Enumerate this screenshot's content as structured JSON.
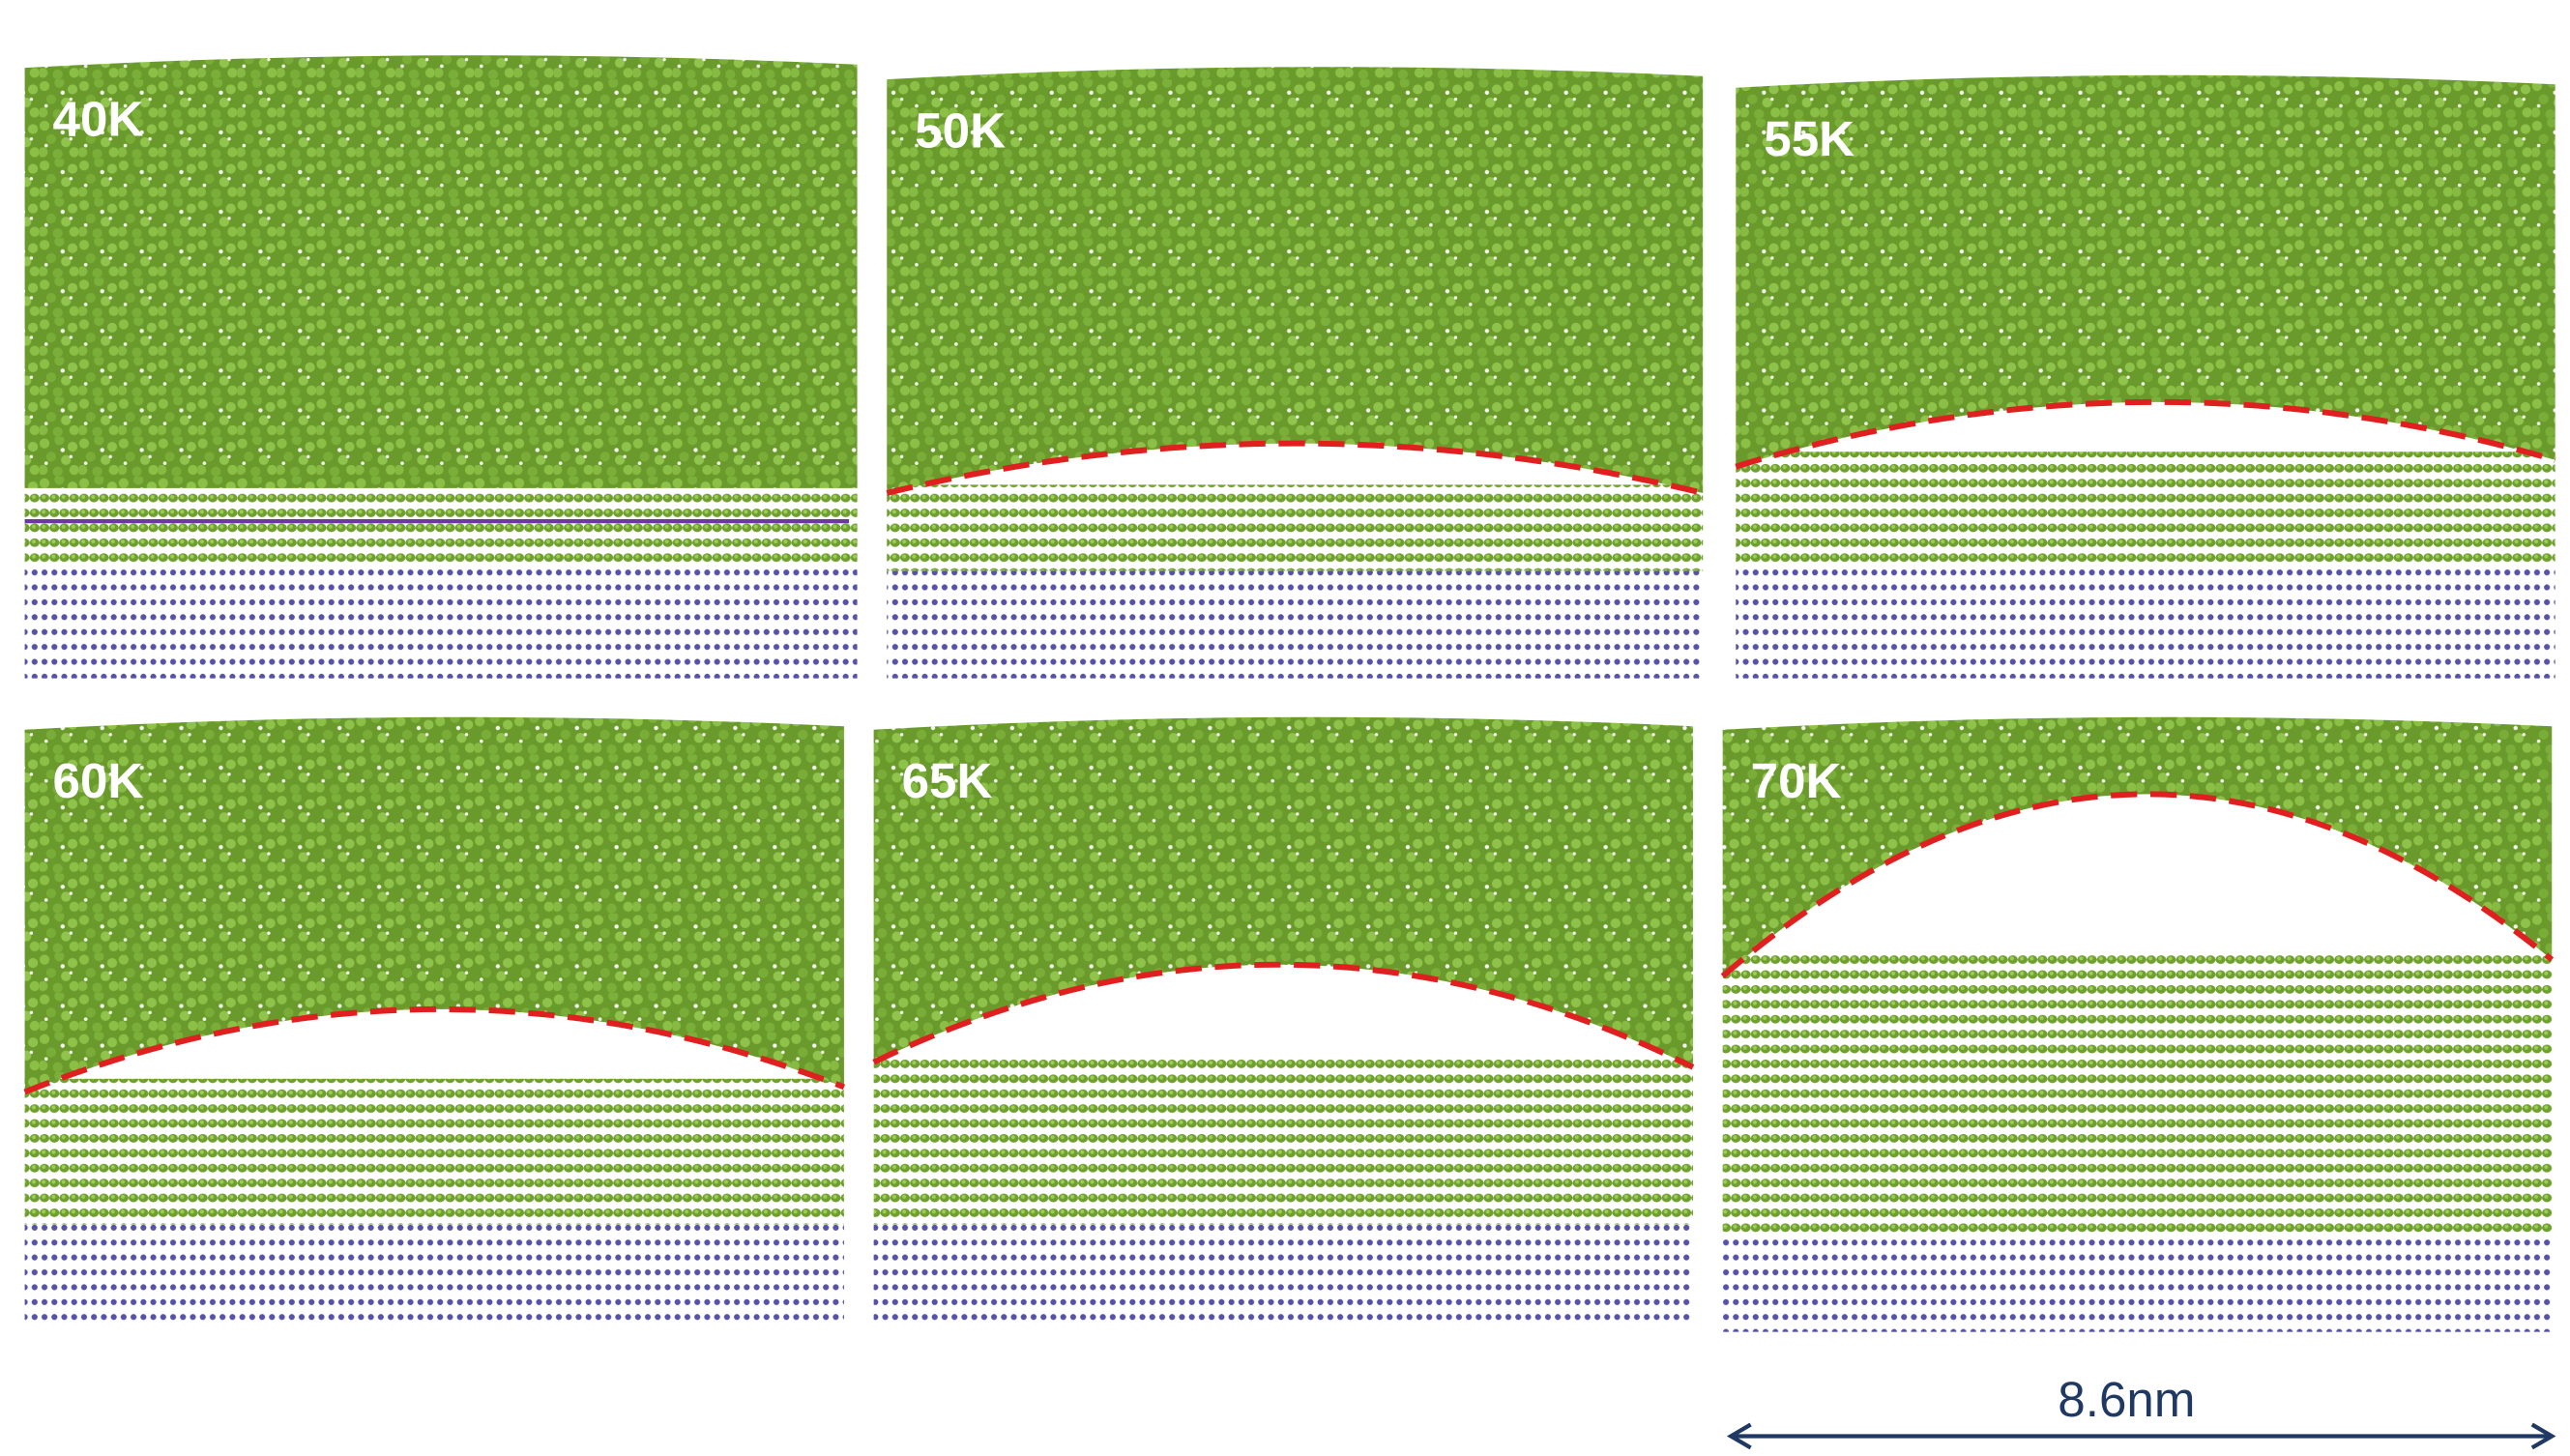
{
  "panels": [
    {
      "label": "40K"
    },
    {
      "label": "50K"
    },
    {
      "label": "55K"
    },
    {
      "label": "60K"
    },
    {
      "label": "65K"
    },
    {
      "label": "70K"
    }
  ],
  "scale_bar": {
    "label": "8.6nm"
  }
}
